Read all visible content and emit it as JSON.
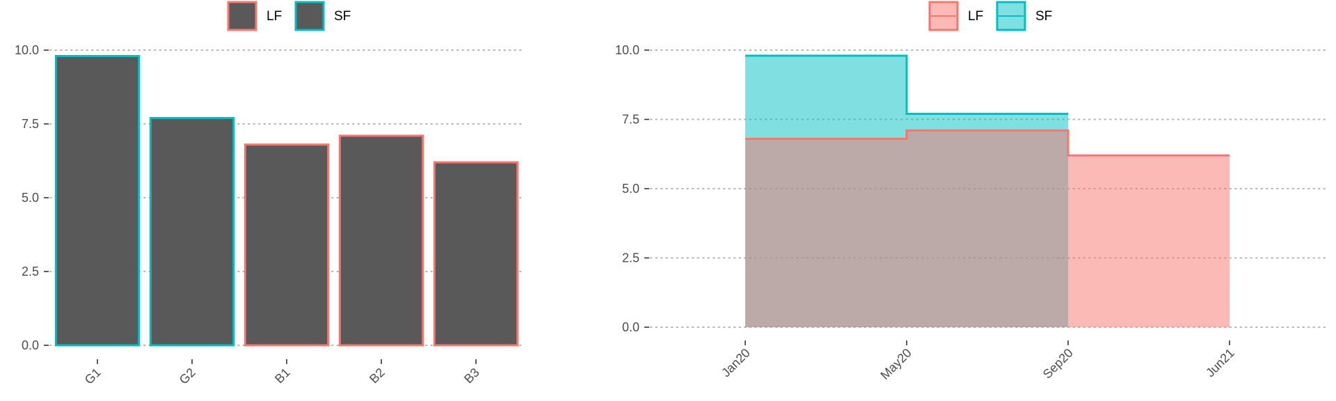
{
  "colors": {
    "lf": "#F8766D",
    "sf": "#00BFC4",
    "bar_fill": "#595959",
    "grid": "#b3b3b3",
    "tick_text": "#4d4d4d",
    "axis_tick": "#333333",
    "overlap": "#7fbcba"
  },
  "chart_data": [
    {
      "type": "bar",
      "legend": {
        "position": "top",
        "entries": [
          "LF",
          "SF"
        ]
      },
      "categories": [
        "G1",
        "G2",
        "B1",
        "B2",
        "B3"
      ],
      "values": [
        9.8,
        7.7,
        6.8,
        7.1,
        6.2
      ],
      "group": [
        "SF",
        "SF",
        "LF",
        "LF",
        "LF"
      ],
      "ylim": [
        0,
        10
      ],
      "yticks": [
        "0.0",
        "2.5",
        "5.0",
        "7.5",
        "10.0"
      ],
      "grid": "horizontal dotted"
    },
    {
      "type": "area",
      "legend": {
        "position": "top",
        "entries": [
          "LF",
          "SF"
        ]
      },
      "x_ticks": [
        "Jan20",
        "May20",
        "Sep20",
        "Jun21"
      ],
      "ylim": [
        0,
        10
      ],
      "yticks": [
        "0.0",
        "2.5",
        "5.0",
        "7.5",
        "10.0"
      ],
      "grid": "horizontal dotted",
      "series": [
        {
          "name": "SF",
          "steps": [
            {
              "from": "Jan20",
              "to": "May20",
              "value": 9.8
            },
            {
              "from": "May20",
              "to": "Sep20",
              "value": 7.7
            }
          ]
        },
        {
          "name": "LF",
          "steps": [
            {
              "from": "Jan20",
              "to": "May20",
              "value": 6.8
            },
            {
              "from": "May20",
              "to": "Sep20",
              "value": 7.1
            },
            {
              "from": "Sep20",
              "to": "Jun21",
              "value": 6.2
            }
          ]
        }
      ]
    }
  ]
}
